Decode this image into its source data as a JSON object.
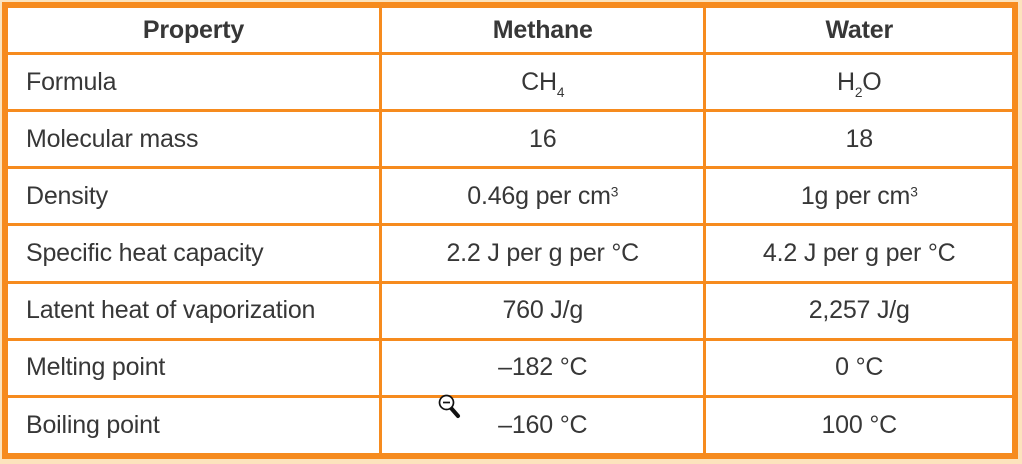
{
  "colors": {
    "table_border": "#f68b1e",
    "page_background": "#fce3bd",
    "cell_background": "#ffffff",
    "text": "#373737"
  },
  "cursor": {
    "icon": "zoom-out-magnifier"
  },
  "table": {
    "headers": [
      "Property",
      "Methane",
      "Water"
    ],
    "rows": [
      {
        "cells": [
          "Formula",
          "CH~4~",
          "H~2~O"
        ]
      },
      {
        "cells": [
          "Molecular mass",
          "16",
          "18"
        ]
      },
      {
        "cells": [
          "Density",
          "0.46g per cm^3^",
          "1g per cm^3^"
        ]
      },
      {
        "cells": [
          "Specific heat capacity",
          "2.2 J per g per °C",
          "4.2 J per g per °C"
        ]
      },
      {
        "cells": [
          "Latent heat of vaporization",
          "760 J/g",
          "2,257 J/g"
        ]
      },
      {
        "cells": [
          "Melting point",
          "–182 °C",
          "0 °C"
        ]
      },
      {
        "cells": [
          "Boiling point",
          "–160 °C",
          "100 °C"
        ]
      }
    ]
  }
}
